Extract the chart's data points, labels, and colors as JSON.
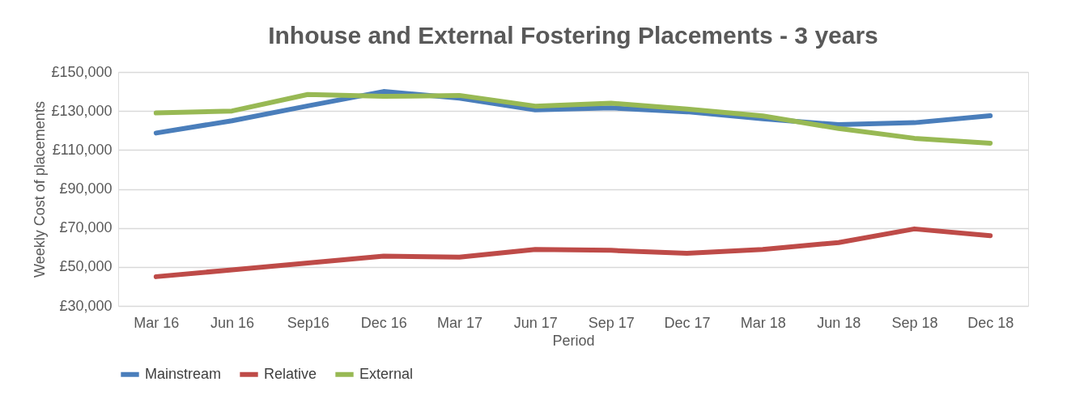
{
  "chart_data": {
    "type": "line",
    "title": "Inhouse and External Fostering Placements - 3 years",
    "xlabel": "Period",
    "ylabel": "Weekly  Cost of placements",
    "categories": [
      "Mar 16",
      "Jun 16",
      "Sep16",
      "Dec 16",
      "Mar 17",
      "Jun 17",
      "Sep 17",
      "Dec 17",
      "Mar 18",
      "Jun 18",
      "Sep 18",
      "Dec 18"
    ],
    "series": [
      {
        "name": "Mainstream",
        "color": "#4a7ebb",
        "values": [
          118700,
          125000,
          132600,
          140000,
          136600,
          130600,
          131600,
          129600,
          126000,
          123000,
          124000,
          127600
        ]
      },
      {
        "name": "Relative",
        "color": "#be4b48",
        "values": [
          45000,
          48500,
          52000,
          55500,
          55000,
          59000,
          58500,
          57000,
          59000,
          62500,
          69500,
          66000
        ]
      },
      {
        "name": "External",
        "color": "#98b954",
        "values": [
          129000,
          130000,
          138500,
          137500,
          138000,
          132500,
          134000,
          131000,
          127500,
          121000,
          116000,
          113500
        ]
      }
    ],
    "ylim": [
      30000,
      150000
    ],
    "yticks": [
      {
        "value": 30000,
        "label": "£30,000"
      },
      {
        "value": 50000,
        "label": "£50,000"
      },
      {
        "value": 70000,
        "label": "£70,000"
      },
      {
        "value": 90000,
        "label": "£90,000"
      },
      {
        "value": 110000,
        "label": "£110,000"
      },
      {
        "value": 130000,
        "label": "£130,000"
      },
      {
        "value": 150000,
        "label": "£150,000"
      }
    ],
    "grid": "y",
    "legend": "bottom",
    "marker": "none",
    "line_style": "solid"
  }
}
